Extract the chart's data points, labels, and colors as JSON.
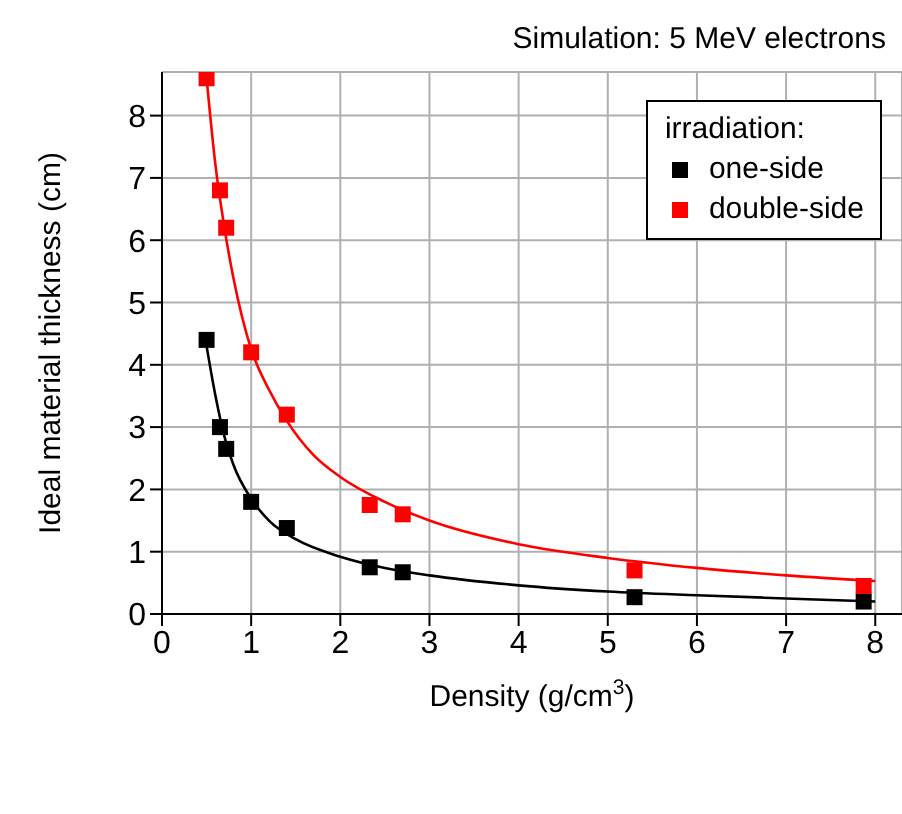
{
  "chart_data": {
    "type": "scatter",
    "title": "Simulation: 5 MeV electrons",
    "xlabel": "Density (g/cm$^{3}$)",
    "ylabel": "Ideal material thickness (cm)",
    "legend_title": "irradiation:",
    "x": [
      0.5,
      0.65,
      0.72,
      1.0,
      1.4,
      2.33,
      2.7,
      5.3,
      7.87
    ],
    "series": [
      {
        "name": "one-side",
        "color": "#000000",
        "values": [
          4.4,
          3.0,
          2.65,
          1.8,
          1.38,
          0.75,
          0.67,
          0.27,
          0.2
        ]
      },
      {
        "name": "double-side",
        "color": "#ff0000",
        "values": [
          8.6,
          6.8,
          6.2,
          4.2,
          3.2,
          1.75,
          1.6,
          0.7,
          0.45
        ]
      },
      {
        "type": "line",
        "marker": "none",
        "color": "#000000",
        "x": [
          0.5,
          0.6,
          0.7,
          0.8,
          1.0,
          1.2,
          1.5,
          2.0,
          2.5,
          3.0,
          4.0,
          5.0,
          6.0,
          7.0,
          8.0
        ],
        "values": [
          4.3,
          3.5,
          2.85,
          2.4,
          1.85,
          1.5,
          1.2,
          0.92,
          0.74,
          0.62,
          0.46,
          0.36,
          0.3,
          0.25,
          0.2
        ]
      },
      {
        "type": "line",
        "marker": "none",
        "color": "#ff0000",
        "x": [
          0.5,
          0.6,
          0.7,
          0.8,
          1.0,
          1.2,
          1.4,
          1.7,
          2.0,
          2.5,
          3.0,
          4.0,
          5.0,
          6.0,
          7.0,
          8.0
        ],
        "values": [
          8.6,
          7.2,
          6.2,
          5.4,
          4.25,
          3.6,
          3.1,
          2.55,
          2.2,
          1.8,
          1.5,
          1.12,
          0.9,
          0.74,
          0.62,
          0.53
        ]
      }
    ],
    "xlim": [
      0,
      8.3
    ],
    "xticks": [
      0,
      1,
      2,
      3,
      4,
      5,
      6,
      7,
      8
    ],
    "ylim": [
      0,
      8.7
    ],
    "yticks": [
      0,
      1,
      2,
      3,
      4,
      5,
      6,
      7,
      8
    ],
    "grid": true,
    "legend": "top right",
    "marker": "square"
  }
}
